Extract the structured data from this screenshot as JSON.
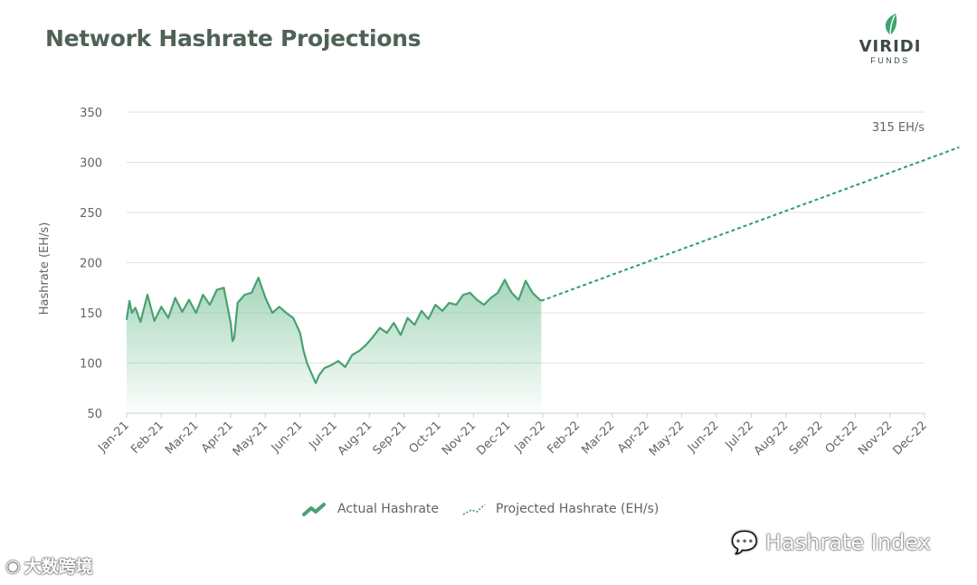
{
  "header": {
    "title": "Network Hashrate Projections"
  },
  "brand": {
    "name": "VIRIDI",
    "sub": "FUNDS"
  },
  "watermarks": {
    "left": "大数跨境",
    "right": "Hashrate Index"
  },
  "colors": {
    "actual": "#4aa071",
    "projected": "#2f9c69",
    "fill_top": "#5bb583",
    "grid": "#e2e2e2"
  },
  "chart_data": {
    "type": "line",
    "title": "Network Hashrate Projections",
    "xlabel": "",
    "ylabel": "Hashrate (EH/s)",
    "ylim": [
      50,
      350
    ],
    "yticks": [
      50,
      100,
      150,
      200,
      250,
      300,
      350
    ],
    "categories": [
      "Jan-21",
      "Feb-21",
      "Mar-21",
      "Apr-21",
      "May-21",
      "Jun-21",
      "Jul-21",
      "Aug-21",
      "Sep-21",
      "Oct-21",
      "Nov-21",
      "Dec-21",
      "Jan-22",
      "Feb-22",
      "Mar-22",
      "Apr-22",
      "May-22",
      "Jun-22",
      "Jul-22",
      "Aug-22",
      "Sep-22",
      "Oct-22",
      "Nov-22",
      "Dec-22"
    ],
    "series": [
      {
        "name": "Actual Hashrate",
        "style": "solid-area",
        "x": [
          0,
          0.08,
          0.15,
          0.25,
          0.4,
          0.6,
          0.8,
          1.0,
          1.2,
          1.4,
          1.6,
          1.8,
          2.0,
          2.2,
          2.4,
          2.6,
          2.8,
          3.0,
          3.05,
          3.1,
          3.2,
          3.4,
          3.6,
          3.8,
          4.0,
          4.2,
          4.4,
          4.6,
          4.8,
          5.0,
          5.1,
          5.2,
          5.3,
          5.45,
          5.55,
          5.7,
          5.9,
          6.1,
          6.3,
          6.5,
          6.7,
          6.9,
          7.1,
          7.3,
          7.5,
          7.7,
          7.9,
          8.1,
          8.3,
          8.5,
          8.7,
          8.9,
          9.1,
          9.3,
          9.5,
          9.7,
          9.9,
          10.1,
          10.3,
          10.5,
          10.7,
          10.9,
          11.0,
          11.1,
          11.3,
          11.5,
          11.7,
          11.85,
          11.95
        ],
        "values": [
          143,
          162,
          150,
          155,
          141,
          168,
          142,
          156,
          145,
          165,
          151,
          163,
          150,
          168,
          158,
          173,
          175,
          140,
          122,
          125,
          160,
          168,
          170,
          185,
          165,
          150,
          156,
          150,
          145,
          130,
          112,
          100,
          92,
          80,
          88,
          95,
          98,
          102,
          96,
          108,
          112,
          118,
          126,
          135,
          130,
          140,
          128,
          145,
          138,
          152,
          144,
          158,
          152,
          160,
          158,
          168,
          170,
          163,
          158,
          165,
          170,
          183,
          176,
          170,
          163,
          182,
          170,
          165,
          162
        ]
      },
      {
        "name": "Projected Hashrate (EH/s)",
        "style": "dotted",
        "x": [
          11.95,
          24
        ],
        "values": [
          162,
          315
        ]
      }
    ],
    "annotations": [
      {
        "text": "315 EH/s",
        "x": 24,
        "y": 315
      }
    ],
    "legend": {
      "position": "bottom-center",
      "items": [
        "Actual Hashrate",
        "Projected Hashrate (EH/s)"
      ]
    }
  }
}
